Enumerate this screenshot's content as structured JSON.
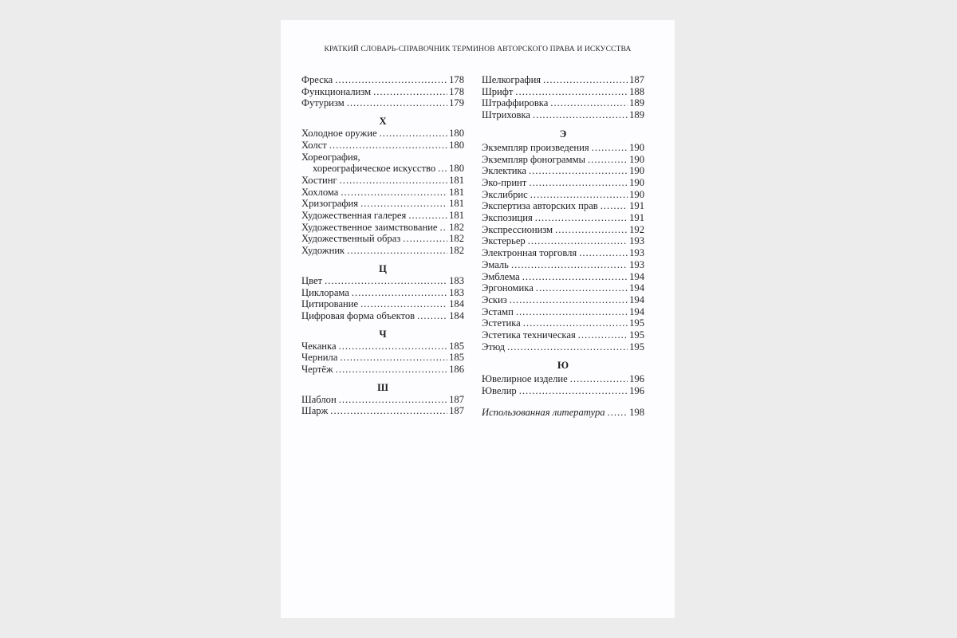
{
  "running_head": "КРАТКИЙ СЛОВАРЬ-СПРАВОЧНИК ТЕРМИНОВ АВТОРСКОГО ПРАВА И ИСКУССТВА",
  "left_column": [
    {
      "heading": "",
      "entries": [
        {
          "term": "Фреска",
          "page": "178"
        },
        {
          "term": "Функционализм",
          "page": "178"
        },
        {
          "term": "Футуризм",
          "page": "179"
        }
      ]
    },
    {
      "heading": "Х",
      "entries": [
        {
          "term": "Холодное оружие",
          "page": "180"
        },
        {
          "term": "Холст",
          "page": "180"
        },
        {
          "term_line1": "Хореография,",
          "term": "хореографическое искусство",
          "page": "180"
        },
        {
          "term": "Хостинг",
          "page": "181"
        },
        {
          "term": "Хохлома",
          "page": "181"
        },
        {
          "term": "Хризография",
          "page": "181"
        },
        {
          "term": "Художественная галерея",
          "page": "181"
        },
        {
          "term": "Художественное заимствование",
          "page": "182"
        },
        {
          "term": "Художественный образ",
          "page": "182"
        },
        {
          "term": "Художник",
          "page": "182"
        }
      ]
    },
    {
      "heading": "Ц",
      "entries": [
        {
          "term": "Цвет",
          "page": "183"
        },
        {
          "term": "Циклорама",
          "page": "183"
        },
        {
          "term": "Цитирование",
          "page": "184"
        },
        {
          "term": "Цифровая форма объектов",
          "page": "184"
        }
      ]
    },
    {
      "heading": "Ч",
      "entries": [
        {
          "term": "Чеканка",
          "page": "185"
        },
        {
          "term": "Чернила",
          "page": "185"
        },
        {
          "term": "Чертёж",
          "page": "186"
        }
      ]
    },
    {
      "heading": "Ш",
      "entries": [
        {
          "term": "Шаблон",
          "page": "187"
        },
        {
          "term": "Шарж",
          "page": "187"
        }
      ]
    }
  ],
  "right_column": [
    {
      "heading": "",
      "entries": [
        {
          "term": "Шелкография",
          "page": "187"
        },
        {
          "term": "Шрифт",
          "page": "188"
        },
        {
          "term": "Штраффировка",
          "page": "189"
        },
        {
          "term": "Штриховка",
          "page": "189"
        }
      ]
    },
    {
      "heading": "Э",
      "entries": [
        {
          "term": "Экземпляр произведения",
          "page": "190"
        },
        {
          "term": "Экземпляр фонограммы",
          "page": "190"
        },
        {
          "term": "Эклектика",
          "page": "190"
        },
        {
          "term": "Эко-принт",
          "page": "190"
        },
        {
          "term": "Экслибрис",
          "page": "190"
        },
        {
          "term": "Экспертиза авторских прав",
          "page": "191"
        },
        {
          "term": "Экспозиция",
          "page": "191"
        },
        {
          "term": "Экспрессионизм",
          "page": "192"
        },
        {
          "term": "Экстерьер",
          "page": "193"
        },
        {
          "term": "Электронная торговля",
          "page": "193"
        },
        {
          "term": "Эмаль",
          "page": "193"
        },
        {
          "term": "Эмблема",
          "page": "194"
        },
        {
          "term": "Эргономика",
          "page": "194"
        },
        {
          "term": "Эскиз",
          "page": "194"
        },
        {
          "term": "Эстамп",
          "page": "194"
        },
        {
          "term": "Эстетика",
          "page": "195"
        },
        {
          "term": "Эстетика техническая",
          "page": "195"
        },
        {
          "term": "Этюд",
          "page": "195"
        }
      ]
    },
    {
      "heading": "Ю",
      "entries": [
        {
          "term": "Ювелирное изделие",
          "page": "196"
        },
        {
          "term": "Ювелир",
          "page": "196"
        }
      ]
    }
  ],
  "bibliography": {
    "term": "Использованная литература",
    "page": "198"
  }
}
